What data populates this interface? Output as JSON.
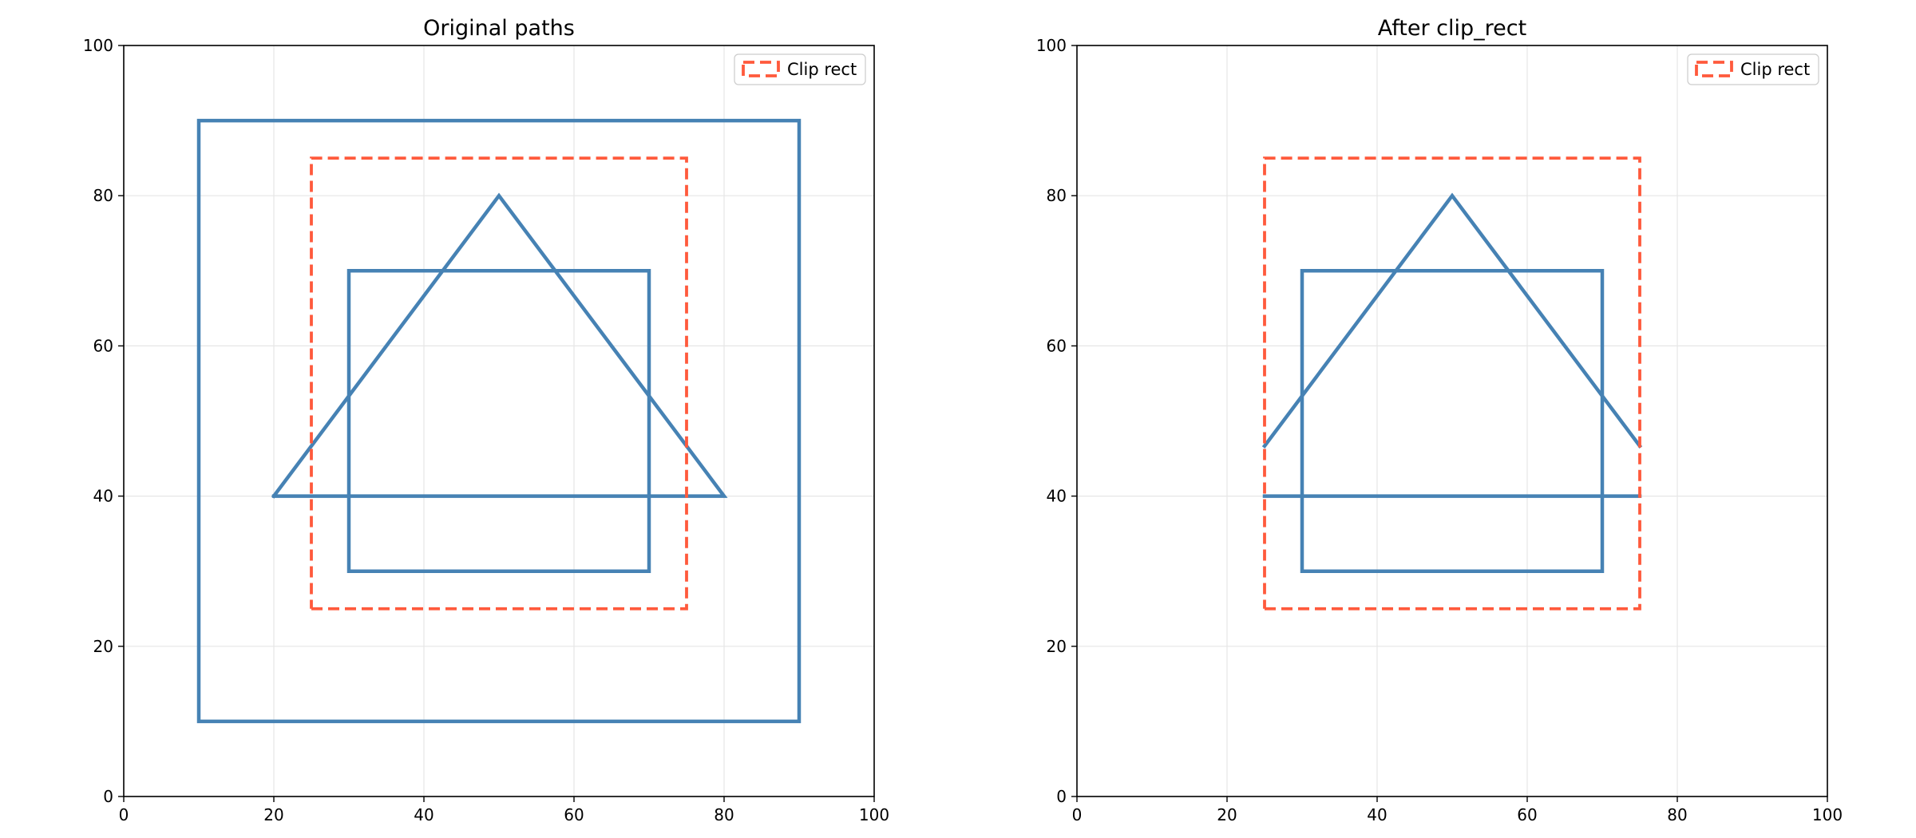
{
  "colors": {
    "path": "#4682b4",
    "clip": "#ff5a3c",
    "grid": "#e6e6e6",
    "axis": "#000000"
  },
  "chart_data": [
    {
      "type": "line",
      "title": "Original paths",
      "xlabel": "",
      "ylabel": "",
      "xlim": [
        0,
        100
      ],
      "ylim": [
        0,
        100
      ],
      "xticks": [
        0,
        20,
        40,
        60,
        80,
        100
      ],
      "yticks": [
        0,
        20,
        40,
        60,
        80,
        100
      ],
      "grid": true,
      "legend": {
        "placement": "top-right",
        "label": "Clip rect"
      },
      "clip_rect": {
        "x": [
          25,
          75,
          75,
          25,
          25
        ],
        "y": [
          25,
          25,
          85,
          85,
          25
        ]
      },
      "paths": [
        {
          "x": [
            10,
            90,
            90,
            10,
            10
          ],
          "y": [
            10,
            10,
            90,
            90,
            10
          ]
        },
        {
          "x": [
            30,
            70,
            70,
            30,
            30
          ],
          "y": [
            30,
            30,
            70,
            70,
            30
          ]
        },
        {
          "x": [
            20,
            50,
            80,
            20
          ],
          "y": [
            40,
            80,
            40,
            40
          ]
        }
      ]
    },
    {
      "type": "line",
      "title": "After clip_rect",
      "xlabel": "",
      "ylabel": "",
      "xlim": [
        0,
        100
      ],
      "ylim": [
        0,
        100
      ],
      "xticks": [
        0,
        20,
        40,
        60,
        80,
        100
      ],
      "yticks": [
        0,
        20,
        40,
        60,
        80,
        100
      ],
      "grid": true,
      "legend": {
        "placement": "top-right",
        "label": "Clip rect"
      },
      "clip_rect": {
        "x": [
          25,
          75,
          75,
          25,
          25
        ],
        "y": [
          25,
          25,
          85,
          85,
          25
        ]
      },
      "paths": [
        {
          "x": [
            30,
            70,
            70,
            30,
            30
          ],
          "y": [
            30,
            30,
            70,
            70,
            30
          ]
        },
        {
          "x": [
            25,
            50,
            75
          ],
          "y": [
            46.67,
            80,
            46.67
          ]
        },
        {
          "x": [
            75,
            25
          ],
          "y": [
            40,
            40
          ]
        }
      ]
    }
  ]
}
